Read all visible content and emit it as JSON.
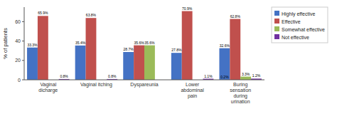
{
  "chart_data": {
    "type": "bar",
    "categories": [
      "Vaginal\ndicharge",
      "Vaginal itching",
      "Dyspareunia",
      "Lower\nabdominal\npain",
      "Buring\nsensation\nduring\nurination"
    ],
    "series": [
      {
        "name": "Highly effective",
        "color": "#4472c4",
        "values": [
          33.3,
          35.4,
          28.7,
          27.8,
          32.6
        ],
        "value_labels": [
          "33.3%",
          "35.4%",
          "28.7%",
          "27.8%",
          "32.6%"
        ]
      },
      {
        "name": "Effective",
        "color": "#c0504d",
        "values": [
          65.9,
          63.8,
          35.6,
          70.9,
          62.8
        ],
        "value_labels": [
          "65.9%",
          "63.8%",
          "35.6%",
          "70.9%",
          "62.8%"
        ]
      },
      {
        "name": "Somewhat effective",
        "color": "#9bbb59",
        "values": [
          0.0,
          0.0,
          35.6,
          0.0,
          3.3
        ],
        "value_labels": [
          null,
          null,
          "35.6%",
          null,
          "3.3%"
        ]
      },
      {
        "name": "Not effective",
        "color": "#7030a0",
        "values": [
          0.8,
          0.8,
          0.0,
          1.1,
          1.2
        ],
        "value_labels": [
          "0.8%",
          "0.8%",
          null,
          "1.1%",
          "1.2%"
        ]
      }
    ],
    "annotations": [
      {
        "text": "0.2%",
        "value": 0.2,
        "category": "Buring\nsensation\nduring\nurination",
        "series": "Highly effective"
      }
    ],
    "ylabel": "% of patients",
    "ylim": [
      0,
      75
    ],
    "yticks": [
      0,
      20,
      40,
      60
    ],
    "grid": false,
    "legend": "right",
    "data_labels": true
  }
}
